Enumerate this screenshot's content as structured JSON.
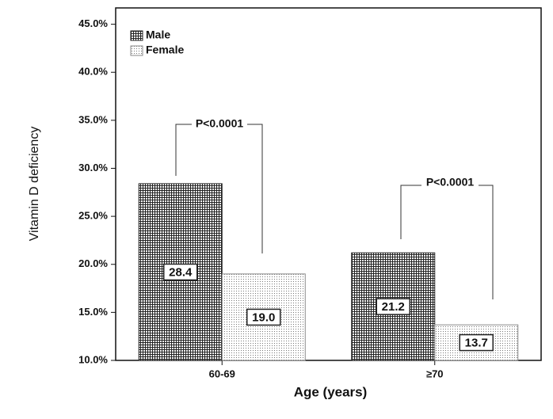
{
  "chart_data": {
    "type": "bar",
    "x_label": "Age (years)",
    "y_label": "Vitamin D deficiency",
    "categories": [
      "60-69",
      "≥70"
    ],
    "series": [
      {
        "name": "Male",
        "color": "#222222",
        "values": [
          28.4,
          21.2
        ],
        "value_labels": [
          "28.4",
          "21.2"
        ]
      },
      {
        "name": "Female",
        "color": "#888888",
        "values": [
          19.0,
          13.7
        ],
        "value_labels": [
          "19.0",
          "13.7"
        ]
      }
    ],
    "ylim": [
      10,
      46.7
    ],
    "yticks": [
      {
        "value": 10,
        "label": "10.0%"
      },
      {
        "value": 15,
        "label": "15.0%"
      },
      {
        "value": 20,
        "label": "20.0%"
      },
      {
        "value": 25,
        "label": "25.0%"
      },
      {
        "value": 30,
        "label": "30.0%"
      },
      {
        "value": 35,
        "label": "35.0%"
      },
      {
        "value": 40,
        "label": "40.0%"
      },
      {
        "value": 45,
        "label": "45.0%"
      }
    ],
    "legend": "upper left",
    "annotations": [
      "P<0.0001",
      "P<0.0001"
    ]
  }
}
